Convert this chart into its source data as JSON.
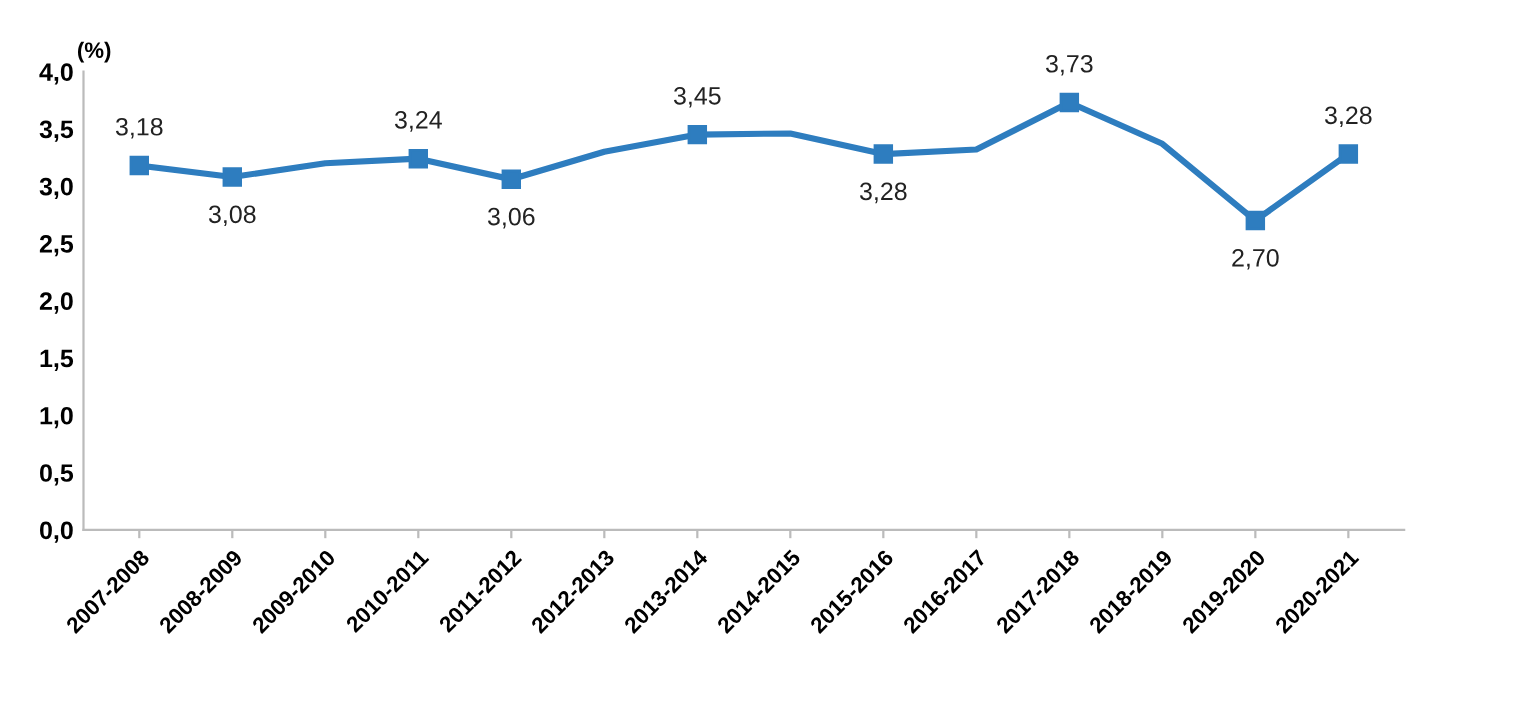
{
  "chart_data": {
    "type": "line",
    "ylabel": "(%)",
    "categories": [
      "2007-2008",
      "2008-2009",
      "2009-2010",
      "2010-2011",
      "2011-2012",
      "2012-2013",
      "2013-2014",
      "2014-2015",
      "2015-2016",
      "2016-2017",
      "2017-2018",
      "2018-2019",
      "2019-2020",
      "2020-2021"
    ],
    "series": [
      {
        "color": "#2e7dbf",
        "values": [
          3.18,
          3.08,
          3.2,
          3.24,
          3.06,
          3.3,
          3.45,
          3.46,
          3.28,
          3.32,
          3.73,
          3.37,
          2.7,
          3.28
        ],
        "value_labels": [
          "3,18",
          "3,08",
          null,
          "3,24",
          "3,06",
          null,
          "3,45",
          null,
          "3,28",
          null,
          "3,73",
          null,
          "2,70",
          "3,28"
        ]
      }
    ],
    "ylim": [
      0,
      4
    ],
    "yticks": [
      {
        "value": 0,
        "label": "0,0"
      },
      {
        "value": 0.5,
        "label": "0,5"
      },
      {
        "value": 1,
        "label": "1,0"
      },
      {
        "value": 1.5,
        "label": "1,5"
      },
      {
        "value": 2,
        "label": "2,0"
      },
      {
        "value": 2.5,
        "label": "2,5"
      },
      {
        "value": 3,
        "label": "3,0"
      },
      {
        "value": 3.5,
        "label": "3,5"
      },
      {
        "value": 4,
        "label": "4,0"
      }
    ],
    "grid": false,
    "legend": false,
    "marker": "square",
    "line_style": "solid"
  }
}
